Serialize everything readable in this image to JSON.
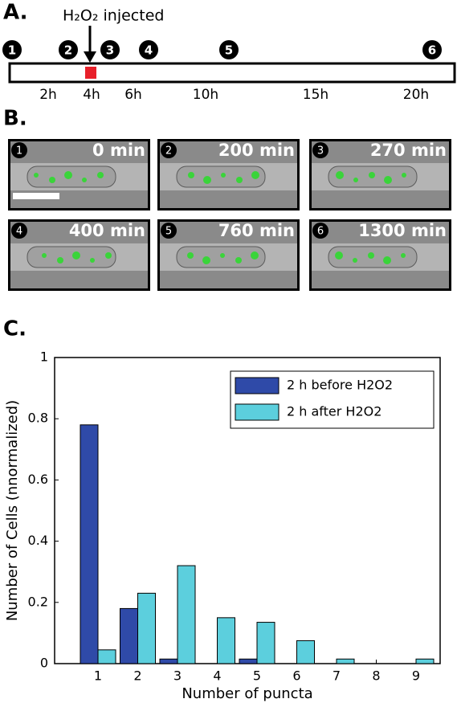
{
  "panel_a": {
    "label": "A.",
    "annotation": "H₂O₂ injected",
    "markers": [
      "1",
      "2",
      "3",
      "4",
      "5",
      "6"
    ],
    "times": [
      "2h",
      "4h",
      "6h",
      "10h",
      "15h",
      "20h"
    ]
  },
  "panel_b": {
    "label": "B.",
    "tiles": [
      {
        "number": "1",
        "time": "0 min"
      },
      {
        "number": "2",
        "time": "200 min"
      },
      {
        "number": "3",
        "time": "270 min"
      },
      {
        "number": "4",
        "time": "400 min"
      },
      {
        "number": "5",
        "time": "760 min"
      },
      {
        "number": "6",
        "time": "1300 min"
      }
    ]
  },
  "chart_data": {
    "type": "bar",
    "panel_label": "C.",
    "xlabel": "Number of puncta",
    "ylabel": "Number of Cells (nnormalized)",
    "categories": [
      "1",
      "2",
      "3",
      "4",
      "5",
      "6",
      "7",
      "8",
      "9"
    ],
    "series": [
      {
        "name": "2 h before H2O2",
        "color": "#2f4aa8",
        "values": [
          0.78,
          0.18,
          0.015,
          0,
          0.015,
          0,
          0,
          0,
          0
        ]
      },
      {
        "name": "2 h after H2O2",
        "color": "#5ccfdd",
        "values": [
          0.045,
          0.23,
          0.32,
          0.15,
          0.135,
          0.075,
          0.015,
          0,
          0.015
        ]
      }
    ],
    "ylim": [
      0,
      1
    ],
    "yticks": [
      0,
      0.2,
      0.4,
      0.6,
      0.8,
      1
    ],
    "legend": "upper right",
    "grid": false
  }
}
